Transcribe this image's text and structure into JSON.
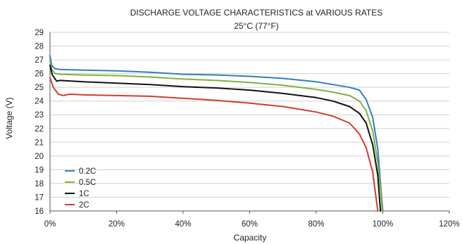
{
  "chart_data": {
    "type": "line",
    "title": "DISCHARGE VOLTAGE CHARACTERISTICS at VARIOUS RATES",
    "subtitle": "25°C (77°F)",
    "xlabel": "Capacity",
    "ylabel": "Voltage (V)",
    "xlim": [
      0,
      120
    ],
    "ylim": [
      16,
      29
    ],
    "x_ticks": [
      "0%",
      "20%",
      "40%",
      "60%",
      "80%",
      "100%",
      "120%"
    ],
    "y_ticks": [
      "16",
      "17",
      "18",
      "19",
      "20",
      "21",
      "22",
      "23",
      "24",
      "25",
      "26",
      "27",
      "28",
      "29"
    ],
    "grid": "horizontal",
    "legend_position": "bottom-left",
    "series": [
      {
        "name": "0.2C",
        "color": "#2f7fbf",
        "points": [
          [
            0,
            27.3
          ],
          [
            0.5,
            26.6
          ],
          [
            1.5,
            26.35
          ],
          [
            3,
            26.3
          ],
          [
            10,
            26.25
          ],
          [
            20,
            26.2
          ],
          [
            30,
            26.1
          ],
          [
            40,
            25.95
          ],
          [
            50,
            25.9
          ],
          [
            60,
            25.8
          ],
          [
            70,
            25.65
          ],
          [
            80,
            25.4
          ],
          [
            85,
            25.2
          ],
          [
            90,
            25.0
          ],
          [
            93,
            24.8
          ],
          [
            95,
            24.1
          ],
          [
            97,
            22.8
          ],
          [
            98.5,
            20.5
          ],
          [
            99.5,
            17.5
          ],
          [
            100,
            16.0
          ]
        ]
      },
      {
        "name": "0.5C",
        "color": "#7fb23a",
        "points": [
          [
            0,
            26.9
          ],
          [
            0.5,
            26.3
          ],
          [
            1.5,
            26.0
          ],
          [
            3,
            25.95
          ],
          [
            10,
            25.9
          ],
          [
            20,
            25.85
          ],
          [
            30,
            25.75
          ],
          [
            40,
            25.6
          ],
          [
            50,
            25.5
          ],
          [
            60,
            25.35
          ],
          [
            70,
            25.15
          ],
          [
            80,
            24.85
          ],
          [
            85,
            24.65
          ],
          [
            90,
            24.4
          ],
          [
            93,
            24.0
          ],
          [
            95,
            23.3
          ],
          [
            97,
            21.8
          ],
          [
            98.5,
            19.5
          ],
          [
            99.5,
            17.2
          ],
          [
            99.8,
            16.0
          ]
        ]
      },
      {
        "name": "1C",
        "color": "#111111",
        "points": [
          [
            0,
            26.6
          ],
          [
            0.7,
            25.9
          ],
          [
            2,
            25.45
          ],
          [
            3,
            25.5
          ],
          [
            10,
            25.4
          ],
          [
            20,
            25.3
          ],
          [
            30,
            25.2
          ],
          [
            40,
            25.05
          ],
          [
            50,
            24.95
          ],
          [
            60,
            24.8
          ],
          [
            70,
            24.55
          ],
          [
            80,
            24.25
          ],
          [
            85,
            24.0
          ],
          [
            90,
            23.6
          ],
          [
            93,
            23.1
          ],
          [
            95,
            22.4
          ],
          [
            97,
            20.8
          ],
          [
            98.5,
            18.6
          ],
          [
            99.3,
            16.0
          ]
        ]
      },
      {
        "name": "2C",
        "color": "#d63a2e",
        "points": [
          [
            0,
            25.7
          ],
          [
            1,
            25.0
          ],
          [
            2.5,
            24.5
          ],
          [
            4,
            24.4
          ],
          [
            6,
            24.5
          ],
          [
            10,
            24.45
          ],
          [
            20,
            24.4
          ],
          [
            30,
            24.35
          ],
          [
            40,
            24.2
          ],
          [
            50,
            24.05
          ],
          [
            60,
            23.85
          ],
          [
            70,
            23.6
          ],
          [
            80,
            23.2
          ],
          [
            85,
            22.9
          ],
          [
            90,
            22.4
          ],
          [
            93,
            21.6
          ],
          [
            95,
            20.6
          ],
          [
            97,
            18.8
          ],
          [
            98.5,
            16.0
          ]
        ]
      }
    ]
  }
}
